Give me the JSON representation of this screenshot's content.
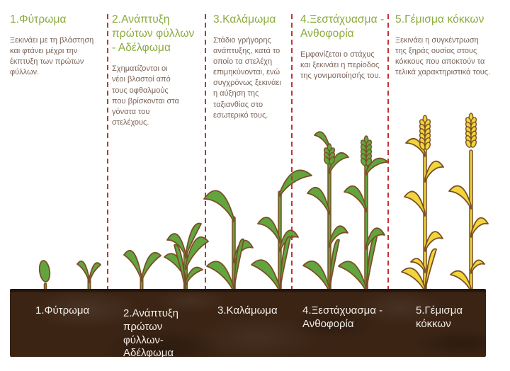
{
  "colors": {
    "background": "#FFFFFF",
    "title_green": "#8BAB3D",
    "body_text": "#7A655A",
    "divider_red": "#C23334",
    "soil_brown": "#3B2414",
    "soil_label_white": "#F1EDE8",
    "plant_green": "#62A53F",
    "plant_gold": "#F1D53B",
    "plant_outline": "#7A4F27"
  },
  "stages": [
    {
      "id": 1,
      "title": "1.Φύτρωμα",
      "description": "Ξεκινάει με τη βλάστηση και φτάνει μέχρι την έκπτυξη των πρώτων φύλλων.",
      "soil_label": "1.Φύτρωμα"
    },
    {
      "id": 2,
      "title": "2.Ανάπτυξη πρώτων φύλλων - Αδέλφωμα",
      "description": "Σχηματίζονται οι νέοι βλαστοί από τους οφθαλμούς που βρίσκονται στα γόνατα του στελέχους.",
      "soil_label": "2.Ανάπτυξη πρώτων φύλλων- Αδέλφωμα"
    },
    {
      "id": 3,
      "title": "3.Καλάμωμα",
      "description": "Στάδιο γρήγορης ανάπτυξης, κατά το οποίο τα στελέχη επιμηκύνονται, ενώ συγχρόνως ξεκινάει η αύξηση της ταξιανθίας στο εσωτερικό τους.",
      "soil_label": "3.Καλάμωμα"
    },
    {
      "id": 4,
      "title": "4.Ξεστάχυασμα - Ανθοφορία",
      "description": "Εμφανίζεται ο στάχυς και ξεκινάει η περίοδος της γονιμοποίησής του.",
      "soil_label": "4.Ξεστάχυασμα - Ανθοφορία"
    },
    {
      "id": 5,
      "title": "5.Γέμισμα κόκκων",
      "description": "Ξεκινάει η συγκέντρωση της ξηράς ουσίας στους κόκκους που αποκτούν τα τελικά χαρακτηριστικά τους.",
      "soil_label": "5.Γέμισμα κόκκων"
    }
  ]
}
